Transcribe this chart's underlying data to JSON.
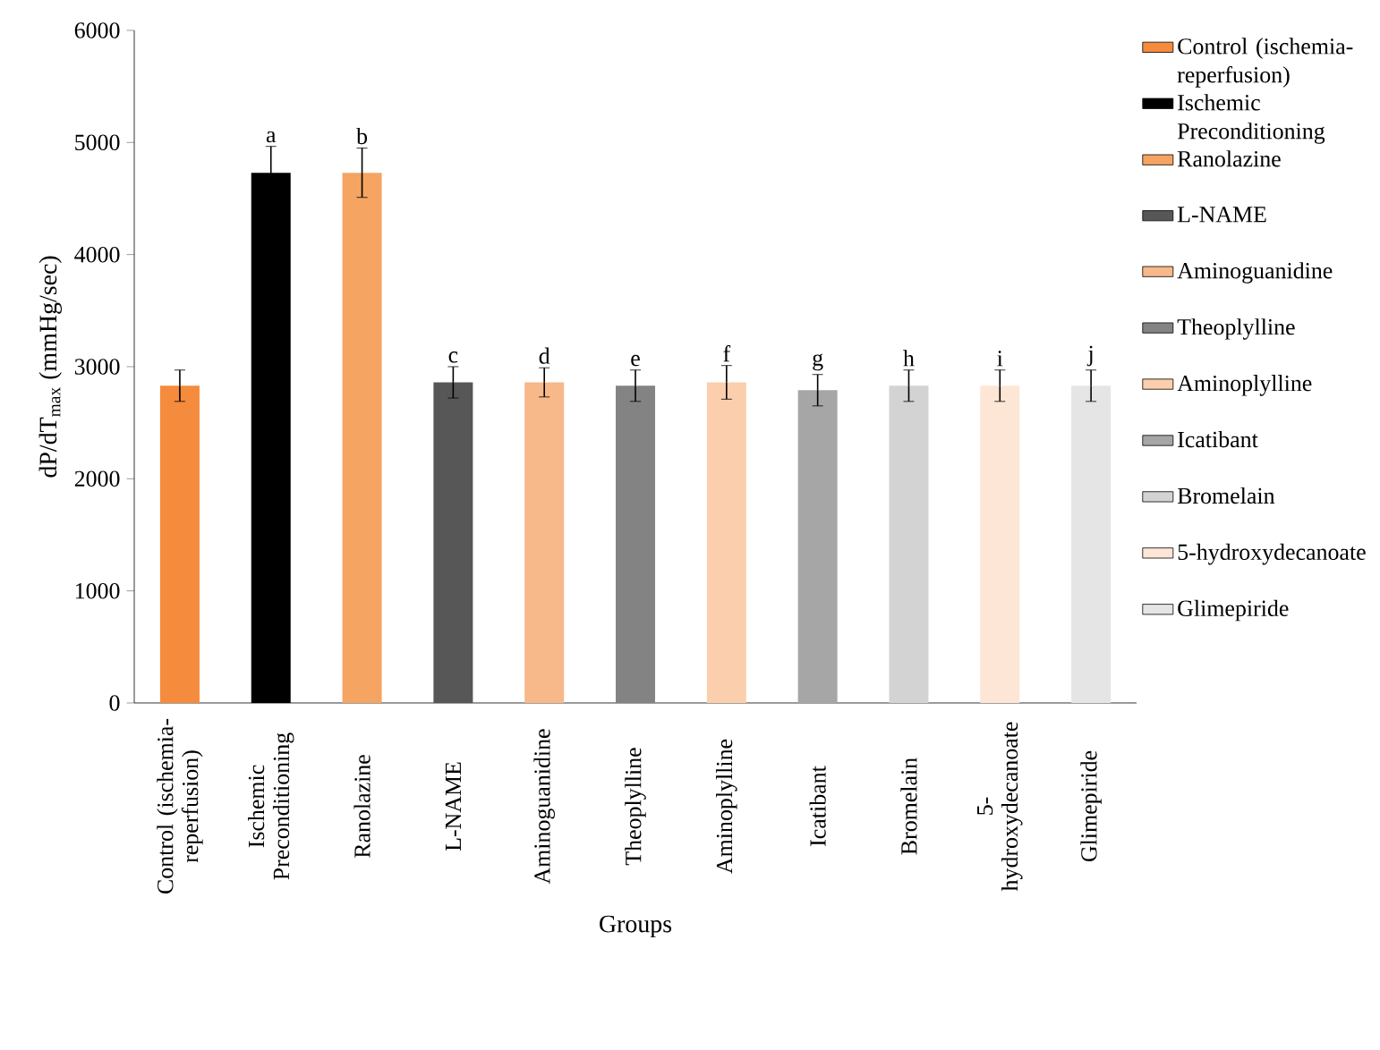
{
  "chart_data": {
    "type": "bar",
    "xlabel": "Groups",
    "ylabel": "dP/dT$_{max}$ (mmHg/sec)",
    "categories": [
      "Control (ischemia-reperfusion)",
      "Ischemic Preconditioning",
      "Ranolazine",
      "L-NAME",
      "Aminoguanidine",
      "Theoplylline",
      "Aminoplylline",
      "Icatibant",
      "Bromelain",
      "5-hydroxydecanoate",
      "Glimepiride"
    ],
    "series": [
      {
        "name": "Control (ischemia-reperfusion)",
        "color": "#f58b3c",
        "values": [
          2830,
          null,
          null,
          null,
          null,
          null,
          null,
          null,
          null,
          null,
          null
        ],
        "errors": [
          140,
          null,
          null,
          null,
          null,
          null,
          null,
          null,
          null,
          null,
          null
        ]
      },
      {
        "name": "Ischemic Preconditioning",
        "color": "#000000",
        "values": [
          null,
          4730,
          null,
          null,
          null,
          null,
          null,
          null,
          null,
          null,
          null
        ],
        "errors": [
          null,
          235,
          null,
          null,
          null,
          null,
          null,
          null,
          null,
          null,
          null
        ]
      },
      {
        "name": "Ranolazine",
        "color": "#f5a462",
        "values": [
          null,
          null,
          4730,
          null,
          null,
          null,
          null,
          null,
          null,
          null,
          null
        ],
        "errors": [
          null,
          null,
          220,
          null,
          null,
          null,
          null,
          null,
          null,
          null,
          null
        ]
      },
      {
        "name": "L-NAME",
        "color": "#575757",
        "values": [
          null,
          null,
          null,
          2860,
          null,
          null,
          null,
          null,
          null,
          null,
          null
        ],
        "errors": [
          null,
          null,
          null,
          140,
          null,
          null,
          null,
          null,
          null,
          null,
          null
        ]
      },
      {
        "name": "Aminoguanidine",
        "color": "#f7b88a",
        "values": [
          null,
          null,
          null,
          null,
          2860,
          null,
          null,
          null,
          null,
          null,
          null
        ],
        "errors": [
          null,
          null,
          null,
          null,
          130,
          null,
          null,
          null,
          null,
          null,
          null
        ]
      },
      {
        "name": "Theoplylline",
        "color": "#838383",
        "values": [
          null,
          null,
          null,
          null,
          null,
          2830,
          null,
          null,
          null,
          null,
          null
        ],
        "errors": [
          null,
          null,
          null,
          null,
          null,
          140,
          null,
          null,
          null,
          null,
          null
        ]
      },
      {
        "name": "Aminoplylline",
        "color": "#fbcfad",
        "values": [
          null,
          null,
          null,
          null,
          null,
          null,
          2860,
          null,
          null,
          null,
          null
        ],
        "errors": [
          null,
          null,
          null,
          null,
          null,
          null,
          150,
          null,
          null,
          null,
          null
        ]
      },
      {
        "name": "Icatibant",
        "color": "#a6a6a6",
        "values": [
          null,
          null,
          null,
          null,
          null,
          null,
          null,
          2790,
          null,
          null,
          null
        ],
        "errors": [
          null,
          null,
          null,
          null,
          null,
          null,
          null,
          140,
          null,
          null,
          null
        ]
      },
      {
        "name": "Bromelain",
        "color": "#d3d3d3",
        "values": [
          null,
          null,
          null,
          null,
          null,
          null,
          null,
          null,
          2830,
          null,
          null
        ],
        "errors": [
          null,
          null,
          null,
          null,
          null,
          null,
          null,
          null,
          140,
          null,
          null
        ]
      },
      {
        "name": "5-hydroxydecanoate",
        "color": "#fde6d6",
        "values": [
          null,
          null,
          null,
          null,
          null,
          null,
          null,
          null,
          null,
          2830,
          null
        ],
        "errors": [
          null,
          null,
          null,
          null,
          null,
          null,
          null,
          null,
          null,
          140,
          null
        ]
      },
      {
        "name": "Glimepiride",
        "color": "#e5e5e5",
        "values": [
          null,
          null,
          null,
          null,
          null,
          null,
          null,
          null,
          null,
          null,
          2830
        ],
        "errors": [
          null,
          null,
          null,
          null,
          null,
          null,
          null,
          null,
          null,
          null,
          140
        ]
      }
    ],
    "ylim": [
      0,
      6000
    ],
    "yticks": [
      0,
      1000,
      2000,
      3000,
      4000,
      5000,
      6000
    ],
    "annotations": [
      {
        "text": "a",
        "x": "Ischemic Preconditioning",
        "y": 4730
      },
      {
        "text": "b",
        "x": "Ranolazine",
        "y": 4730
      },
      {
        "text": "c",
        "x": "L-NAME",
        "y": 2860
      },
      {
        "text": "d",
        "x": "Aminoguanidine",
        "y": 2860
      },
      {
        "text": "e",
        "x": "Theoplylline",
        "y": 2830
      },
      {
        "text": "f",
        "x": "Aminoplylline",
        "y": 2860
      },
      {
        "text": "g",
        "x": "Icatibant",
        "y": 2790
      },
      {
        "text": "h",
        "x": "Bromelain",
        "y": 2830
      },
      {
        "text": "i",
        "x": "5-hydroxydecanoate",
        "y": 2830
      },
      {
        "text": "j",
        "x": "Glimepiride",
        "y": 2830
      }
    ],
    "legend": "right"
  }
}
